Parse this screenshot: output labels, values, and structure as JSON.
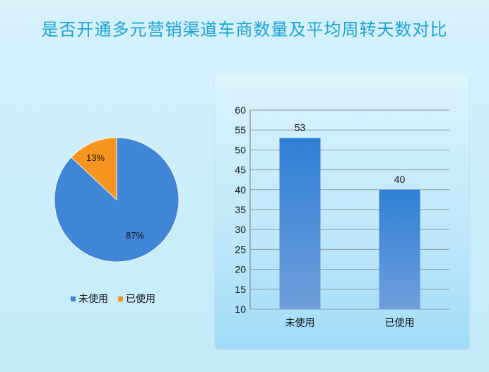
{
  "title": "是否开通多元营销渠道车商数量及平均周转天数对比",
  "colors": {
    "title": "#1aa3d6",
    "series_blue": "#3f86d6",
    "series_orange": "#f7941d",
    "panel_bg": "#c4eaf9"
  },
  "chart_data": [
    {
      "type": "pie",
      "categories": [
        "未使用",
        "已使用"
      ],
      "values": [
        87,
        13
      ],
      "labels": [
        "87%",
        "13%"
      ],
      "legend": [
        "未使用",
        "已使用"
      ],
      "legend_position": "bottom"
    },
    {
      "type": "bar",
      "categories": [
        "未使用",
        "已使用"
      ],
      "values": [
        53,
        40
      ],
      "data_labels": [
        "53",
        "40"
      ],
      "ylim": [
        10,
        60
      ],
      "yticks": [
        "10",
        "15",
        "20",
        "25",
        "30",
        "35",
        "40",
        "45",
        "50",
        "55",
        "60"
      ],
      "grid": true
    }
  ]
}
